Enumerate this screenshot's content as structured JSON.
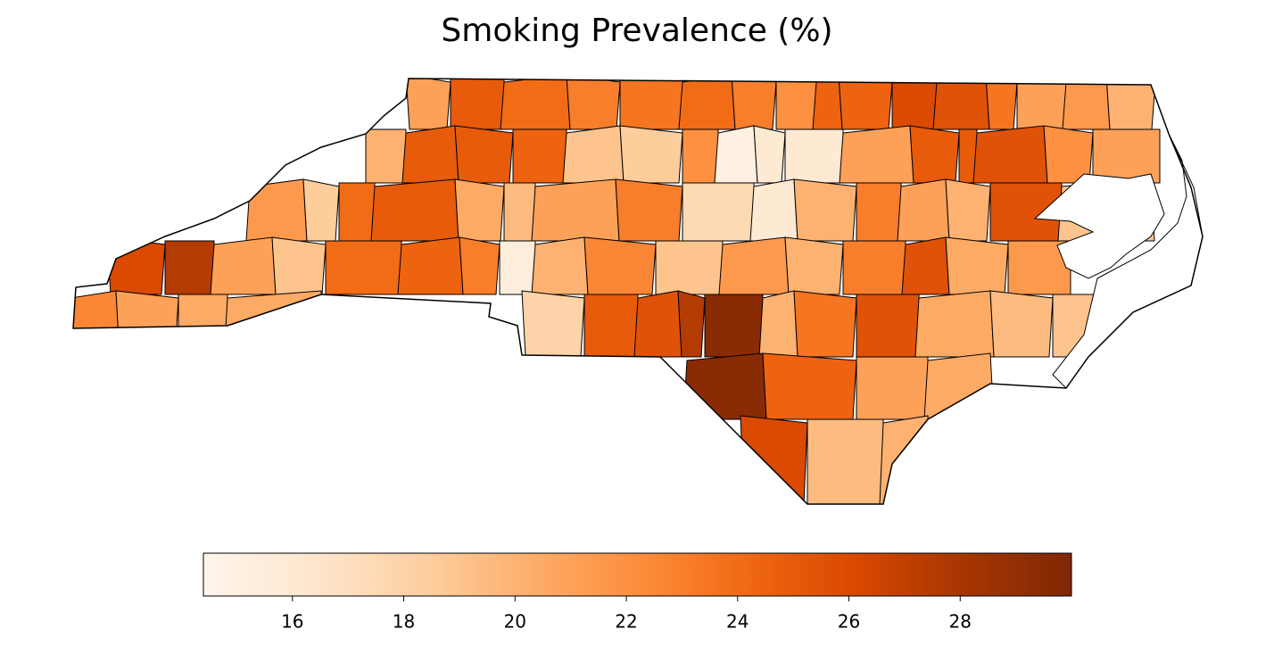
{
  "chart_data": {
    "type": "choropleth",
    "title": "Smoking Prevalence (%)",
    "colormap": "Oranges",
    "values": [
      21,
      25,
      24,
      23,
      23.5,
      24,
      23,
      22,
      24.5,
      24.5,
      26,
      25.5,
      23.5,
      21,
      21.5,
      20,
      20,
      25,
      25,
      24.5,
      19,
      18.5,
      22,
      15,
      16,
      16,
      21,
      25,
      25,
      25.5,
      22,
      21,
      21.5,
      18.5,
      24,
      25,
      20.5,
      19.5,
      21,
      23,
      17.5,
      16,
      20,
      23,
      21,
      20,
      25.5,
      19,
      26,
      27.5,
      21,
      19,
      24,
      24.5,
      23,
      15.5,
      20,
      22.5,
      19,
      21.5,
      20,
      23,
      25.5,
      20.5,
      21.5,
      22.5,
      21,
      20.5,
      20.5,
      18,
      25,
      25.5,
      27.5,
      29.5,
      20,
      23.5,
      25.5,
      20.5,
      19.5,
      19,
      29.5,
      24.5,
      21,
      20.5,
      26,
      19.5,
      20
    ],
    "clim": [
      14.4,
      30.0
    ],
    "ticks": [
      16,
      18,
      20,
      22,
      24,
      26,
      28
    ]
  }
}
